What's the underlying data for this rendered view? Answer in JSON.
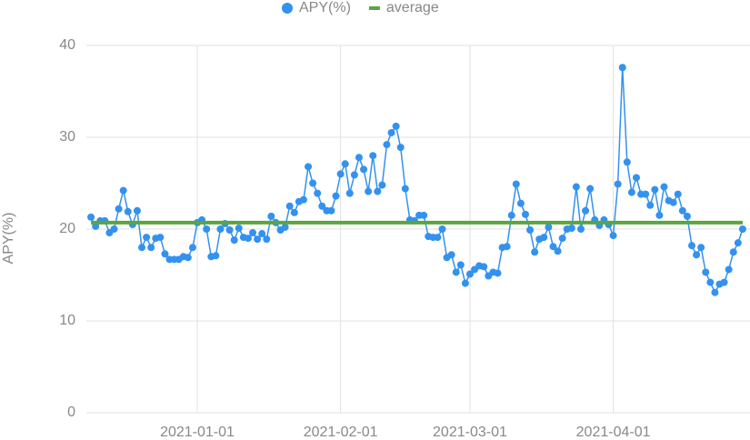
{
  "chart_data": {
    "type": "line",
    "ylabel": "APY(%)",
    "x": [
      "2020-12-09",
      "2020-12-10",
      "2020-12-11",
      "2020-12-12",
      "2020-12-13",
      "2020-12-14",
      "2020-12-15",
      "2020-12-16",
      "2020-12-17",
      "2020-12-18",
      "2020-12-19",
      "2020-12-20",
      "2020-12-21",
      "2020-12-22",
      "2020-12-23",
      "2020-12-24",
      "2020-12-25",
      "2020-12-26",
      "2020-12-27",
      "2020-12-28",
      "2020-12-29",
      "2020-12-30",
      "2020-12-31",
      "2021-01-01",
      "2021-01-02",
      "2021-01-03",
      "2021-01-04",
      "2021-01-05",
      "2021-01-06",
      "2021-01-07",
      "2021-01-08",
      "2021-01-09",
      "2021-01-10",
      "2021-01-11",
      "2021-01-12",
      "2021-01-13",
      "2021-01-14",
      "2021-01-15",
      "2021-01-16",
      "2021-01-17",
      "2021-01-18",
      "2021-01-19",
      "2021-01-20",
      "2021-01-21",
      "2021-01-22",
      "2021-01-23",
      "2021-01-24",
      "2021-01-25",
      "2021-01-26",
      "2021-01-27",
      "2021-01-28",
      "2021-01-29",
      "2021-01-30",
      "2021-01-31",
      "2021-02-01",
      "2021-02-02",
      "2021-02-03",
      "2021-02-04",
      "2021-02-05",
      "2021-02-06",
      "2021-02-07",
      "2021-02-08",
      "2021-02-09",
      "2021-02-10",
      "2021-02-11",
      "2021-02-12",
      "2021-02-13",
      "2021-02-14",
      "2021-02-15",
      "2021-02-16",
      "2021-02-17",
      "2021-02-18",
      "2021-02-19",
      "2021-02-20",
      "2021-02-21",
      "2021-02-22",
      "2021-02-23",
      "2021-02-24",
      "2021-02-25",
      "2021-02-26",
      "2021-02-27",
      "2021-02-28",
      "2021-03-01",
      "2021-03-02",
      "2021-03-03",
      "2021-03-04",
      "2021-03-05",
      "2021-03-06",
      "2021-03-07",
      "2021-03-08",
      "2021-03-09",
      "2021-03-10",
      "2021-03-11",
      "2021-03-12",
      "2021-03-13",
      "2021-03-14",
      "2021-03-15",
      "2021-03-16",
      "2021-03-17",
      "2021-03-18",
      "2021-03-19",
      "2021-03-20",
      "2021-03-21",
      "2021-03-22",
      "2021-03-23",
      "2021-03-24",
      "2021-03-25",
      "2021-03-26",
      "2021-03-27",
      "2021-03-28",
      "2021-03-29",
      "2021-03-30",
      "2021-03-31",
      "2021-04-01",
      "2021-04-02",
      "2021-04-03",
      "2021-04-04",
      "2021-04-05",
      "2021-04-06",
      "2021-04-07",
      "2021-04-08",
      "2021-04-09",
      "2021-04-10",
      "2021-04-11",
      "2021-04-12",
      "2021-04-13",
      "2021-04-14",
      "2021-04-15",
      "2021-04-16",
      "2021-04-17",
      "2021-04-18",
      "2021-04-19",
      "2021-04-20",
      "2021-04-21",
      "2021-04-22",
      "2021-04-23",
      "2021-04-24",
      "2021-04-25",
      "2021-04-26",
      "2021-04-27",
      "2021-04-28",
      "2021-04-29"
    ],
    "series": [
      {
        "name": "APY(%)",
        "color": "#3391f0",
        "values": [
          21.3,
          20.3,
          20.9,
          20.9,
          19.6,
          20.0,
          22.2,
          24.2,
          21.9,
          20.5,
          22.0,
          18.0,
          19.1,
          18.0,
          19.0,
          19.1,
          17.3,
          16.7,
          16.7,
          16.7,
          17.0,
          16.9,
          18.0,
          20.7,
          21.0,
          20.0,
          17.0,
          17.1,
          20.0,
          20.6,
          19.9,
          18.8,
          20.1,
          19.1,
          19.0,
          19.6,
          18.9,
          19.5,
          18.9,
          21.4,
          20.7,
          19.9,
          20.2,
          22.5,
          21.8,
          23.0,
          23.2,
          26.8,
          25.0,
          23.9,
          22.5,
          22.0,
          22.0,
          23.6,
          26.0,
          27.1,
          23.9,
          25.9,
          27.8,
          26.5,
          24.1,
          28.0,
          24.1,
          24.8,
          29.2,
          30.5,
          31.2,
          28.9,
          24.4,
          21.0,
          20.9,
          21.5,
          21.5,
          19.2,
          19.1,
          19.1,
          20.0,
          16.9,
          17.2,
          15.3,
          16.1,
          14.1,
          15.1,
          15.6,
          16.0,
          15.9,
          14.9,
          15.3,
          15.2,
          18.0,
          18.1,
          21.5,
          24.9,
          22.8,
          21.6,
          19.9,
          17.5,
          18.9,
          19.1,
          20.2,
          18.1,
          17.6,
          19.0,
          20.0,
          20.1,
          24.6,
          20.0,
          22.0,
          24.4,
          21.0,
          20.4,
          21.0,
          20.5,
          19.3,
          24.9,
          37.6,
          27.3,
          24.0,
          25.6,
          23.8,
          23.8,
          22.6,
          24.3,
          21.5,
          24.6,
          23.1,
          22.9,
          23.8,
          22.0,
          21.4,
          18.2,
          17.2,
          18.0,
          15.3,
          14.2,
          13.1,
          14.0,
          14.2,
          15.6,
          17.5,
          18.5,
          20.0
        ]
      },
      {
        "name": "average",
        "color": "#5ba53b",
        "x": [
          "2020-12-09",
          "2021-04-29"
        ],
        "values": [
          20.7,
          20.7
        ]
      }
    ],
    "xlim": [
      "2020-12-08",
      "2021-04-30"
    ],
    "xticks": [
      "2021-01-01",
      "2021-02-01",
      "2021-03-01",
      "2021-04-01"
    ],
    "ylim": [
      0,
      40
    ],
    "yticks": [
      0,
      10,
      20,
      30,
      40
    ],
    "grid": true
  }
}
